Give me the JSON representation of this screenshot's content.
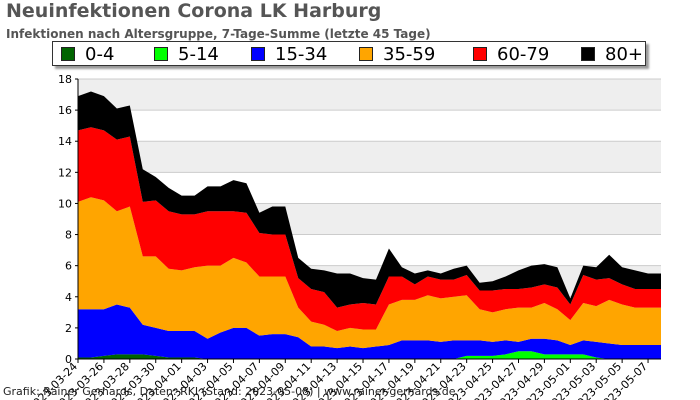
{
  "header": {
    "title": "Neuinfektionen Corona LK Harburg",
    "subtitle": "Infektionen nach Altersgruppe, 7-Tage-Summe (letzte 45 Tage)"
  },
  "footer": {
    "credit": "Grafik: Rainer Gerhards, Daten: RKI (Stand: 2023-05-08) | www.rainer-gerhards.de"
  },
  "colors": {
    "0-4": "#006400",
    "5-14": "#00ff00",
    "15-34": "#0000ff",
    "35-59": "#ffa500",
    "60-79": "#ff0000",
    "80+": "#000000",
    "band": "#eeeeee",
    "grid": "#cccccc"
  },
  "chart_data": {
    "type": "area",
    "stacked": true,
    "title": "Neuinfektionen Corona LK Harburg",
    "subtitle": "Infektionen nach Altersgruppe, 7-Tage-Summe (letzte 45 Tage)",
    "xlabel": "",
    "ylabel": "",
    "ylim": [
      0,
      18
    ],
    "yticks": [
      0,
      2,
      4,
      6,
      8,
      10,
      12,
      14,
      16,
      18
    ],
    "grid": true,
    "legend_position": "top",
    "x_tick_labels": [
      "2023-03-24",
      "2023-03-26",
      "2023-03-28",
      "2023-03-30",
      "2023-04-01",
      "2023-04-03",
      "2023-04-05",
      "2023-04-07",
      "2023-04-09",
      "2023-04-11",
      "2023-04-13",
      "2023-04-15",
      "2023-04-17",
      "2023-04-19",
      "2023-04-21",
      "2023-04-23",
      "2023-04-25",
      "2023-04-27",
      "2023-04-29",
      "2023-05-01",
      "2023-05-03",
      "2023-05-05",
      "2023-05-07"
    ],
    "x": [
      "2023-03-24",
      "2023-03-25",
      "2023-03-26",
      "2023-03-27",
      "2023-03-28",
      "2023-03-29",
      "2023-03-30",
      "2023-03-31",
      "2023-04-01",
      "2023-04-02",
      "2023-04-03",
      "2023-04-04",
      "2023-04-05",
      "2023-04-06",
      "2023-04-07",
      "2023-04-08",
      "2023-04-09",
      "2023-04-10",
      "2023-04-11",
      "2023-04-12",
      "2023-04-13",
      "2023-04-14",
      "2023-04-15",
      "2023-04-16",
      "2023-04-17",
      "2023-04-18",
      "2023-04-19",
      "2023-04-20",
      "2023-04-21",
      "2023-04-22",
      "2023-04-23",
      "2023-04-24",
      "2023-04-25",
      "2023-04-26",
      "2023-04-27",
      "2023-04-28",
      "2023-04-29",
      "2023-04-30",
      "2023-05-01",
      "2023-05-02",
      "2023-05-03",
      "2023-05-04",
      "2023-05-05",
      "2023-05-06",
      "2023-05-07",
      "2023-05-08"
    ],
    "series": [
      {
        "name": "0-4",
        "values": [
          0.1,
          0.1,
          0.2,
          0.3,
          0.3,
          0.3,
          0.2,
          0.1,
          0.1,
          0.1,
          0,
          0,
          0,
          0,
          0,
          0,
          0,
          0,
          0,
          0,
          0,
          0,
          0,
          0,
          0,
          0,
          0,
          0,
          0,
          0,
          0,
          0,
          0,
          0,
          0,
          0,
          0,
          0,
          0,
          0,
          0,
          0,
          0,
          0,
          0,
          0
        ]
      },
      {
        "name": "5-14",
        "values": [
          0,
          0,
          0,
          0,
          0,
          0,
          0,
          0,
          0,
          0,
          0,
          0,
          0,
          0,
          0,
          0,
          0,
          0,
          0,
          0,
          0,
          0,
          0,
          0,
          0,
          0,
          0,
          0,
          0,
          0,
          0.2,
          0.2,
          0.2,
          0.3,
          0.5,
          0.5,
          0.3,
          0.3,
          0.3,
          0.3,
          0.1,
          0,
          0,
          0,
          0,
          0
        ]
      },
      {
        "name": "15-34",
        "values": [
          3.1,
          3.1,
          3.0,
          3.2,
          3.0,
          1.9,
          1.8,
          1.7,
          1.7,
          1.7,
          1.3,
          1.7,
          2.0,
          2.0,
          1.5,
          1.6,
          1.6,
          1.4,
          0.8,
          0.8,
          0.7,
          0.8,
          0.7,
          0.8,
          0.9,
          1.2,
          1.2,
          1.2,
          1.1,
          1.2,
          1.0,
          1.0,
          0.9,
          0.9,
          0.6,
          0.8,
          1.0,
          0.9,
          0.6,
          0.9,
          1.0,
          1.0,
          0.9,
          0.9,
          0.9,
          0.9
        ]
      },
      {
        "name": "35-59",
        "values": [
          6.9,
          7.2,
          7.0,
          6.0,
          6.5,
          4.4,
          4.6,
          4.0,
          3.9,
          4.1,
          4.7,
          4.3,
          4.5,
          4.2,
          3.8,
          3.7,
          3.7,
          1.9,
          1.6,
          1.4,
          1.1,
          1.2,
          1.2,
          1.1,
          2.6,
          2.6,
          2.6,
          2.9,
          2.8,
          2.8,
          2.9,
          2.0,
          1.9,
          2.0,
          2.2,
          2.0,
          2.3,
          2.0,
          1.6,
          2.4,
          2.3,
          2.8,
          2.6,
          2.4,
          2.4,
          2.4
        ]
      },
      {
        "name": "60-79",
        "values": [
          4.6,
          4.5,
          4.5,
          4.6,
          4.5,
          3.5,
          3.6,
          3.7,
          3.6,
          3.4,
          3.5,
          3.5,
          3.0,
          3.2,
          2.8,
          2.7,
          2.7,
          1.9,
          2.1,
          2.1,
          1.5,
          1.5,
          1.7,
          1.6,
          1.8,
          1.5,
          1.0,
          1.2,
          1.2,
          1.1,
          1.3,
          1.2,
          1.4,
          1.3,
          1.2,
          1.3,
          1.2,
          1.4,
          1.0,
          1.8,
          1.7,
          1.4,
          1.3,
          1.2,
          1.2,
          1.2
        ]
      },
      {
        "name": "80+",
        "values": [
          2.2,
          2.3,
          2.2,
          2.0,
          2.0,
          2.1,
          1.5,
          1.5,
          1.2,
          1.2,
          1.6,
          1.6,
          2.0,
          1.9,
          1.3,
          1.8,
          1.8,
          1.3,
          1.3,
          1.4,
          2.2,
          2.0,
          1.6,
          1.6,
          1.8,
          0.6,
          0.7,
          0.4,
          0.4,
          0.7,
          0.6,
          0.5,
          0.6,
          0.8,
          1.2,
          1.4,
          1.3,
          1.3,
          0.4,
          0.6,
          0.8,
          1.5,
          1.1,
          1.2,
          1.0,
          1.0
        ]
      }
    ]
  }
}
